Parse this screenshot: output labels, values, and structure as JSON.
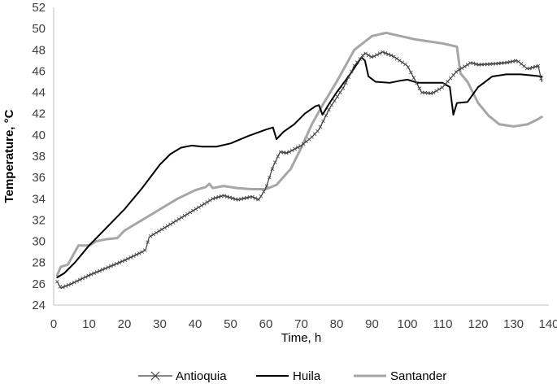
{
  "chart_data": {
    "type": "line",
    "title": "",
    "xlabel": "Time, h",
    "ylabel": "Temperature, °C",
    "xlim": [
      0,
      140
    ],
    "ylim": [
      24,
      52
    ],
    "xticks": [
      0,
      10,
      20,
      30,
      40,
      50,
      60,
      70,
      80,
      90,
      100,
      110,
      120,
      130,
      140
    ],
    "yticks": [
      24,
      26,
      28,
      30,
      32,
      34,
      36,
      38,
      40,
      42,
      44,
      46,
      48,
      50,
      52
    ],
    "grid": false,
    "legend_position": "bottom",
    "series": [
      {
        "name": "Antioquia",
        "color": "#404040",
        "marker": "x",
        "points": [
          [
            1,
            26.2
          ],
          [
            2,
            25.6
          ],
          [
            5,
            26.0
          ],
          [
            10,
            26.8
          ],
          [
            15,
            27.5
          ],
          [
            20,
            28.2
          ],
          [
            25,
            29.0
          ],
          [
            26,
            29.2
          ],
          [
            27,
            30.4
          ],
          [
            30,
            31.0
          ],
          [
            35,
            32.0
          ],
          [
            40,
            33.0
          ],
          [
            45,
            34.0
          ],
          [
            48,
            34.3
          ],
          [
            52,
            33.9
          ],
          [
            56,
            34.2
          ],
          [
            58,
            33.9
          ],
          [
            60,
            35.0
          ],
          [
            62,
            37.0
          ],
          [
            64,
            38.4
          ],
          [
            66,
            38.3
          ],
          [
            70,
            39.0
          ],
          [
            73,
            39.8
          ],
          [
            75,
            40.5
          ],
          [
            78,
            42.5
          ],
          [
            82,
            44.5
          ],
          [
            85,
            46.5
          ],
          [
            88,
            47.7
          ],
          [
            90,
            47.3
          ],
          [
            93,
            47.8
          ],
          [
            96,
            47.4
          ],
          [
            100,
            46.5
          ],
          [
            104,
            44.0
          ],
          [
            107,
            43.9
          ],
          [
            110,
            44.5
          ],
          [
            114,
            46.0
          ],
          [
            118,
            46.8
          ],
          [
            120,
            46.6
          ],
          [
            125,
            46.7
          ],
          [
            128,
            46.8
          ],
          [
            131,
            47.0
          ],
          [
            134,
            46.2
          ],
          [
            137,
            46.5
          ],
          [
            138,
            45.0
          ]
        ]
      },
      {
        "name": "Huila",
        "color": "#000000",
        "marker": "none",
        "points": [
          [
            1,
            26.6
          ],
          [
            3,
            27.0
          ],
          [
            6,
            28.0
          ],
          [
            10,
            29.6
          ],
          [
            15,
            31.3
          ],
          [
            20,
            33.0
          ],
          [
            25,
            35.0
          ],
          [
            30,
            37.2
          ],
          [
            33,
            38.2
          ],
          [
            36,
            38.8
          ],
          [
            39,
            39.0
          ],
          [
            42,
            38.9
          ],
          [
            46,
            38.9
          ],
          [
            50,
            39.2
          ],
          [
            55,
            39.9
          ],
          [
            60,
            40.5
          ],
          [
            62,
            40.7
          ],
          [
            63,
            39.6
          ],
          [
            65,
            40.3
          ],
          [
            68,
            41.0
          ],
          [
            71,
            42.0
          ],
          [
            74,
            42.7
          ],
          [
            75,
            42.8
          ],
          [
            76,
            41.9
          ],
          [
            78,
            43.0
          ],
          [
            80,
            44.0
          ],
          [
            84,
            45.8
          ],
          [
            87,
            47.3
          ],
          [
            88,
            47.0
          ],
          [
            89,
            45.5
          ],
          [
            91,
            45.0
          ],
          [
            95,
            44.9
          ],
          [
            98,
            45.1
          ],
          [
            100,
            45.2
          ],
          [
            103,
            44.9
          ],
          [
            107,
            44.9
          ],
          [
            110,
            44.9
          ],
          [
            112,
            44.5
          ],
          [
            113,
            41.9
          ],
          [
            114,
            43.0
          ],
          [
            117,
            43.1
          ],
          [
            120,
            44.5
          ],
          [
            124,
            45.5
          ],
          [
            128,
            45.7
          ],
          [
            132,
            45.7
          ],
          [
            135,
            45.6
          ],
          [
            138,
            45.5
          ]
        ]
      },
      {
        "name": "Santander",
        "color": "#a6a6a6",
        "marker": "none",
        "points": [
          [
            1,
            26.8
          ],
          [
            2,
            27.6
          ],
          [
            4,
            27.8
          ],
          [
            6,
            29.0
          ],
          [
            7,
            29.6
          ],
          [
            10,
            29.6
          ],
          [
            12,
            30.0
          ],
          [
            15,
            30.2
          ],
          [
            18,
            30.3
          ],
          [
            20,
            31.0
          ],
          [
            25,
            32.0
          ],
          [
            30,
            33.0
          ],
          [
            35,
            34.0
          ],
          [
            40,
            34.8
          ],
          [
            43,
            35.1
          ],
          [
            44,
            35.4
          ],
          [
            45,
            35.0
          ],
          [
            48,
            35.2
          ],
          [
            52,
            35.0
          ],
          [
            56,
            34.9
          ],
          [
            60,
            34.9
          ],
          [
            63,
            35.3
          ],
          [
            67,
            36.8
          ],
          [
            70,
            38.8
          ],
          [
            73,
            41.0
          ],
          [
            76,
            42.8
          ],
          [
            80,
            45.0
          ],
          [
            85,
            48.0
          ],
          [
            90,
            49.3
          ],
          [
            94,
            49.6
          ],
          [
            98,
            49.3
          ],
          [
            102,
            49.0
          ],
          [
            106,
            48.8
          ],
          [
            110,
            48.6
          ],
          [
            114,
            48.3
          ],
          [
            115,
            45.8
          ],
          [
            117,
            45.0
          ],
          [
            120,
            43.0
          ],
          [
            123,
            41.8
          ],
          [
            126,
            41.0
          ],
          [
            130,
            40.8
          ],
          [
            134,
            41.0
          ],
          [
            137,
            41.5
          ],
          [
            138,
            41.7
          ]
        ]
      }
    ]
  }
}
